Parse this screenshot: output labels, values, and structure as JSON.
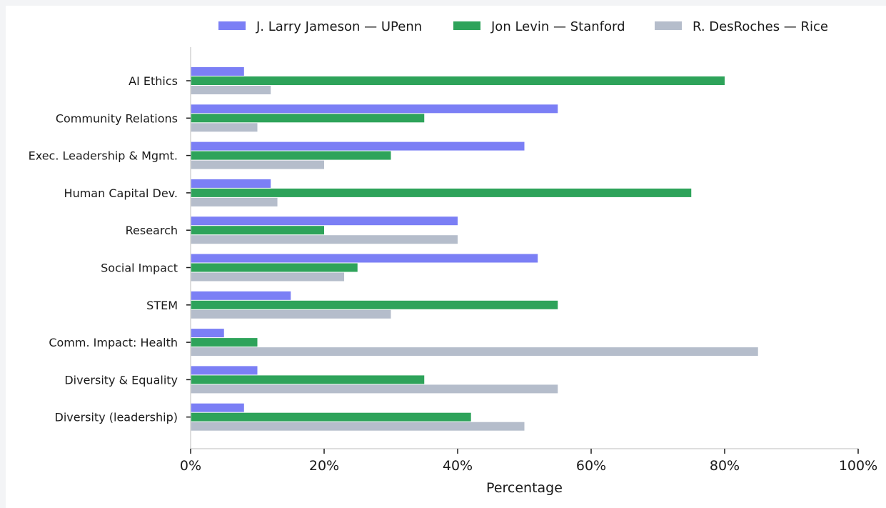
{
  "chart_data": {
    "type": "bar",
    "orientation": "horizontal",
    "categories": [
      "AI Ethics",
      "Community Relations",
      "Exec. Leadership & Mgmt.",
      "Human Capital Dev.",
      "Research",
      "Social Impact",
      "STEM",
      "Comm. Impact: Health",
      "Diversity & Equality",
      "Diversity (leadership)"
    ],
    "series": [
      {
        "name": "J. Larry Jameson — UPenn",
        "color": "#7b7ff5",
        "values": [
          8,
          55,
          50,
          12,
          40,
          52,
          15,
          5,
          10,
          8
        ]
      },
      {
        "name": "Jon Levin — Stanford",
        "color": "#2ea35a",
        "values": [
          80,
          35,
          30,
          75,
          20,
          25,
          55,
          10,
          35,
          42
        ]
      },
      {
        "name": "R. DesRoches — Rice",
        "color": "#b5bdcb",
        "values": [
          12,
          10,
          20,
          13,
          40,
          23,
          30,
          85,
          55,
          50
        ]
      }
    ],
    "xlim": [
      0,
      100
    ],
    "x_ticks": [
      "0%",
      "20%",
      "40%",
      "60%",
      "80%",
      "100%"
    ],
    "x_tick_values": [
      0,
      20,
      40,
      60,
      80,
      100
    ],
    "xlabel": "Percentage",
    "ylabel": "",
    "title": "",
    "grid": false,
    "legend_position": "top"
  }
}
